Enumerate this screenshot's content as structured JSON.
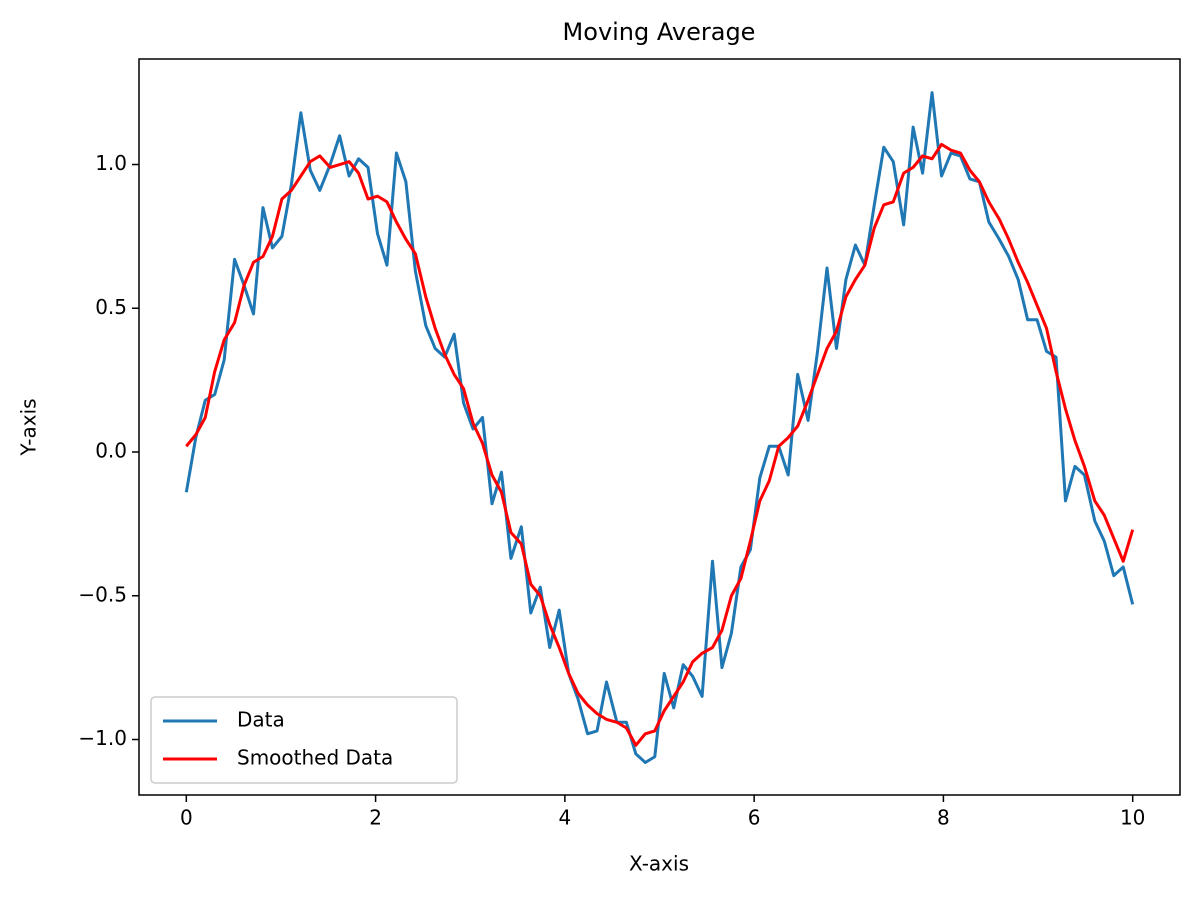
{
  "chart_data": {
    "type": "line",
    "title": "Moving Average",
    "xlabel": "X-axis",
    "ylabel": "Y-axis",
    "x": [
      0,
      0.1,
      0.2,
      0.3,
      0.4,
      0.51,
      0.61,
      0.71,
      0.81,
      0.91,
      1.01,
      1.11,
      1.21,
      1.31,
      1.41,
      1.52,
      1.62,
      1.72,
      1.82,
      1.92,
      2.02,
      2.12,
      2.22,
      2.32,
      2.42,
      2.53,
      2.63,
      2.73,
      2.83,
      2.93,
      3.03,
      3.13,
      3.23,
      3.33,
      3.43,
      3.54,
      3.64,
      3.74,
      3.84,
      3.94,
      4.04,
      4.14,
      4.24,
      4.34,
      4.44,
      4.55,
      4.65,
      4.75,
      4.85,
      4.95,
      5.05,
      5.15,
      5.25,
      5.35,
      5.45,
      5.56,
      5.66,
      5.76,
      5.86,
      5.96,
      6.06,
      6.16,
      6.26,
      6.36,
      6.46,
      6.57,
      6.67,
      6.77,
      6.87,
      6.97,
      7.07,
      7.17,
      7.27,
      7.37,
      7.47,
      7.58,
      7.68,
      7.78,
      7.88,
      7.98,
      8.08,
      8.18,
      8.28,
      8.38,
      8.48,
      8.59,
      8.69,
      8.79,
      8.89,
      8.99,
      9.09,
      9.19,
      9.29,
      9.39,
      9.49,
      9.6,
      9.7,
      9.8,
      9.9,
      10
    ],
    "series": [
      {
        "name": "Data",
        "color": "#1f77b4",
        "values": [
          -0.14,
          0.05,
          0.18,
          0.2,
          0.32,
          0.67,
          0.58,
          0.48,
          0.85,
          0.71,
          0.75,
          0.93,
          1.18,
          0.98,
          0.91,
          1.0,
          1.1,
          0.96,
          1.02,
          0.99,
          0.76,
          0.65,
          1.04,
          0.94,
          0.63,
          0.44,
          0.36,
          0.33,
          0.41,
          0.17,
          0.08,
          0.12,
          -0.18,
          -0.07,
          -0.37,
          -0.26,
          -0.56,
          -0.47,
          -0.68,
          -0.55,
          -0.77,
          -0.86,
          -0.98,
          -0.97,
          -0.8,
          -0.94,
          -0.94,
          -1.05,
          -1.08,
          -1.06,
          -0.77,
          -0.89,
          -0.74,
          -0.78,
          -0.85,
          -0.38,
          -0.75,
          -0.63,
          -0.4,
          -0.34,
          -0.09,
          0.02,
          0.02,
          -0.08,
          0.27,
          0.11,
          0.35,
          0.64,
          0.36,
          0.6,
          0.72,
          0.65,
          0.86,
          1.06,
          1.01,
          0.79,
          1.13,
          0.97,
          1.25,
          0.96,
          1.04,
          1.03,
          0.95,
          0.94,
          0.8,
          0.74,
          0.68,
          0.6,
          0.46,
          0.46,
          0.35,
          0.33,
          -0.17,
          -0.05,
          -0.08,
          -0.24,
          -0.31,
          -0.43,
          -0.4,
          -0.53
        ]
      },
      {
        "name": "Smoothed Data",
        "color": "#ff0000",
        "values": [
          0.02,
          0.06,
          0.12,
          0.28,
          0.39,
          0.45,
          0.58,
          0.66,
          0.68,
          0.75,
          0.88,
          0.91,
          0.96,
          1.01,
          1.03,
          0.99,
          1.0,
          1.01,
          0.97,
          0.88,
          0.89,
          0.87,
          0.8,
          0.74,
          0.69,
          0.54,
          0.43,
          0.34,
          0.27,
          0.22,
          0.1,
          0.03,
          -0.08,
          -0.14,
          -0.28,
          -0.32,
          -0.46,
          -0.5,
          -0.6,
          -0.68,
          -0.77,
          -0.84,
          -0.88,
          -0.91,
          -0.93,
          -0.94,
          -0.96,
          -1.02,
          -0.98,
          -0.97,
          -0.9,
          -0.85,
          -0.8,
          -0.73,
          -0.7,
          -0.68,
          -0.62,
          -0.5,
          -0.44,
          -0.31,
          -0.17,
          -0.1,
          0.02,
          0.05,
          0.09,
          0.18,
          0.27,
          0.36,
          0.42,
          0.54,
          0.6,
          0.65,
          0.78,
          0.86,
          0.87,
          0.97,
          0.99,
          1.03,
          1.02,
          1.07,
          1.05,
          1.04,
          0.98,
          0.94,
          0.87,
          0.81,
          0.74,
          0.66,
          0.59,
          0.51,
          0.43,
          0.28,
          0.15,
          0.04,
          -0.05,
          -0.17,
          -0.22,
          -0.3,
          -0.38,
          -0.27
        ]
      }
    ],
    "xlim": [
      -0.5,
      10.5
    ],
    "ylim": [
      -1.193,
      1.367
    ],
    "xticks": [
      0,
      2,
      4,
      6,
      8,
      10
    ],
    "yticks": [
      {
        "value": -1,
        "label": "−1.0"
      },
      {
        "value": -0.5,
        "label": "−0.5"
      },
      {
        "value": 0,
        "label": "0.0"
      },
      {
        "value": 0.5,
        "label": "0.5"
      },
      {
        "value": 1,
        "label": "1.0"
      }
    ],
    "legend": "lower left",
    "grid": false
  }
}
